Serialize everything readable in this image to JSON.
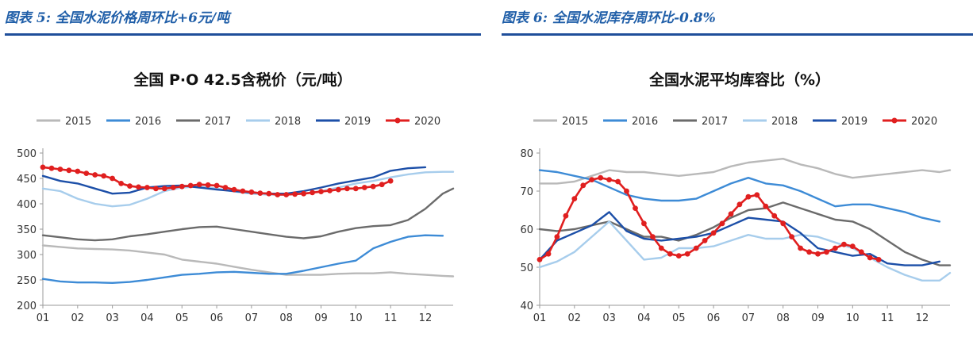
{
  "figures": [
    {
      "caption": "图表 5:  全国水泥价格周环比+6元/吨",
      "chart_data": {
        "type": "line",
        "title": "全国 P·O 42.5含税价（元/吨）",
        "xlabel": "",
        "ylabel": "",
        "x_ticks": [
          "01",
          "02",
          "03",
          "04",
          "05",
          "06",
          "07",
          "08",
          "09",
          "10",
          "11",
          "12"
        ],
        "xlim": [
          1,
          12.8
        ],
        "ylim": [
          200,
          500
        ],
        "y_ticks": [
          200,
          250,
          300,
          350,
          400,
          450,
          500
        ],
        "grid": false,
        "legend": "top",
        "series": [
          {
            "name": "2015",
            "color": "#b9b9b9",
            "marker": false,
            "x": [
              1.0,
              1.5,
              2.0,
              2.5,
              3.0,
              3.5,
              4.0,
              4.5,
              5.0,
              5.5,
              6.0,
              6.5,
              7.0,
              7.5,
              8.0,
              8.5,
              9.0,
              9.5,
              10.0,
              10.5,
              11.0,
              11.5,
              12.0,
              12.5,
              12.8
            ],
            "y": [
              318,
              315,
              312,
              311,
              310,
              308,
              304,
              300,
              290,
              286,
              282,
              276,
              270,
              265,
              260,
              260,
              260,
              262,
              263,
              263,
              265,
              262,
              260,
              258,
              257
            ]
          },
          {
            "name": "2016",
            "color": "#3d8bd6",
            "marker": false,
            "x": [
              1.0,
              1.5,
              2.0,
              2.5,
              3.0,
              3.5,
              4.0,
              4.5,
              5.0,
              5.5,
              6.0,
              6.5,
              7.0,
              7.5,
              8.0,
              8.5,
              9.0,
              9.5,
              10.0,
              10.5,
              11.0,
              11.5,
              12.0,
              12.5
            ],
            "y": [
              252,
              247,
              245,
              245,
              244,
              246,
              250,
              255,
              260,
              262,
              265,
              266,
              264,
              262,
              262,
              268,
              275,
              282,
              288,
              312,
              325,
              335,
              338,
              337
            ]
          },
          {
            "name": "2017",
            "color": "#6b6b6b",
            "marker": false,
            "x": [
              1.0,
              1.5,
              2.0,
              2.5,
              3.0,
              3.5,
              4.0,
              4.5,
              5.0,
              5.5,
              6.0,
              6.5,
              7.0,
              7.5,
              8.0,
              8.5,
              9.0,
              9.5,
              10.0,
              10.5,
              11.0,
              11.5,
              12.0,
              12.5,
              12.8
            ],
            "y": [
              338,
              334,
              330,
              328,
              330,
              336,
              340,
              345,
              350,
              354,
              355,
              350,
              345,
              340,
              335,
              332,
              336,
              345,
              352,
              356,
              358,
              368,
              390,
              420,
              430
            ]
          },
          {
            "name": "2018",
            "color": "#a7cdec",
            "marker": false,
            "x": [
              1.0,
              1.5,
              2.0,
              2.5,
              3.0,
              3.5,
              4.0,
              4.5,
              5.0,
              5.5,
              6.0,
              6.5,
              7.0,
              7.5,
              8.0,
              8.5,
              9.0,
              9.5,
              10.0,
              10.5,
              11.0,
              11.5,
              12.0,
              12.5,
              12.8
            ],
            "y": [
              430,
              425,
              410,
              400,
              395,
              398,
              410,
              425,
              432,
              434,
              430,
              424,
              420,
              418,
              418,
              420,
              425,
              432,
              440,
              445,
              452,
              458,
              462,
              463,
              463
            ]
          },
          {
            "name": "2019",
            "color": "#1c4fa8",
            "marker": false,
            "x": [
              1.0,
              1.5,
              2.0,
              2.5,
              3.0,
              3.5,
              4.0,
              4.5,
              5.0,
              5.5,
              6.0,
              6.5,
              7.0,
              7.5,
              8.0,
              8.5,
              9.0,
              9.5,
              10.0,
              10.5,
              11.0,
              11.5,
              12.0
            ],
            "y": [
              455,
              445,
              440,
              430,
              420,
              422,
              432,
              435,
              436,
              432,
              428,
              425,
              422,
              420,
              420,
              425,
              432,
              440,
              446,
              452,
              465,
              470,
              472
            ]
          },
          {
            "name": "2020",
            "color": "#e01f1f",
            "marker": true,
            "x": [
              1.0,
              1.25,
              1.5,
              1.75,
              2.0,
              2.25,
              2.5,
              2.75,
              3.0,
              3.25,
              3.5,
              3.75,
              4.0,
              4.25,
              4.5,
              4.75,
              5.0,
              5.25,
              5.5,
              5.75,
              6.0,
              6.25,
              6.5,
              6.75,
              7.0,
              7.25,
              7.5,
              7.75,
              8.0,
              8.25,
              8.5,
              8.75,
              9.0,
              9.25,
              9.5,
              9.75,
              10.0,
              10.25,
              10.5,
              10.75,
              11.0
            ],
            "y": [
              472,
              470,
              468,
              466,
              464,
              460,
              457,
              455,
              450,
              440,
              435,
              433,
              432,
              430,
              430,
              432,
              434,
              436,
              438,
              437,
              436,
              432,
              428,
              425,
              423,
              421,
              420,
              418,
              418,
              419,
              420,
              422,
              424,
              426,
              428,
              430,
              430,
              432,
              434,
              438,
              445
            ]
          }
        ]
      }
    },
    {
      "caption": "图表 6:  全国水泥库存周环比-0.8%",
      "chart_data": {
        "type": "line",
        "title": "全国水泥平均库容比（%）",
        "xlabel": "",
        "ylabel": "",
        "x_ticks": [
          "01",
          "02",
          "03",
          "04",
          "05",
          "06",
          "07",
          "08",
          "09",
          "10",
          "11",
          "12"
        ],
        "xlim": [
          1,
          12.8
        ],
        "ylim": [
          40,
          80
        ],
        "y_ticks": [
          40,
          50,
          60,
          70,
          80
        ],
        "grid": false,
        "legend": "top",
        "series": [
          {
            "name": "2015",
            "color": "#b9b9b9",
            "marker": false,
            "x": [
              1.0,
              1.5,
              2.0,
              2.5,
              3.0,
              3.5,
              4.0,
              4.5,
              5.0,
              5.5,
              6.0,
              6.5,
              7.0,
              7.5,
              8.0,
              8.5,
              9.0,
              9.5,
              10.0,
              10.5,
              11.0,
              11.5,
              12.0,
              12.5,
              12.8
            ],
            "y": [
              72,
              72,
              72.5,
              74,
              75.5,
              75,
              75,
              74.5,
              74,
              74.5,
              75,
              76.5,
              77.5,
              78,
              78.5,
              77,
              76,
              74.5,
              73.5,
              74,
              74.5,
              75,
              75.5,
              75,
              75.5
            ]
          },
          {
            "name": "2016",
            "color": "#3d8bd6",
            "marker": false,
            "x": [
              1.0,
              1.5,
              2.0,
              2.5,
              3.0,
              3.5,
              4.0,
              4.5,
              5.0,
              5.5,
              6.0,
              6.5,
              7.0,
              7.5,
              8.0,
              8.5,
              9.0,
              9.5,
              10.0,
              10.5,
              11.0,
              11.5,
              12.0,
              12.5
            ],
            "y": [
              75.5,
              75,
              74,
              73,
              71,
              69,
              68,
              67.5,
              67.5,
              68,
              70,
              72,
              73.5,
              72,
              71.5,
              70,
              68,
              66,
              66.5,
              66.5,
              65.5,
              64.5,
              63,
              62
            ]
          },
          {
            "name": "2017",
            "color": "#6b6b6b",
            "marker": false,
            "x": [
              1.0,
              1.5,
              2.0,
              2.5,
              3.0,
              3.5,
              4.0,
              4.5,
              5.0,
              5.5,
              6.0,
              6.5,
              7.0,
              7.5,
              8.0,
              8.5,
              9.0,
              9.5,
              10.0,
              10.5,
              11.0,
              11.5,
              12.0,
              12.5,
              12.8
            ],
            "y": [
              60,
              59.5,
              60,
              61,
              62,
              60,
              58,
              58,
              57,
              58.5,
              60.5,
              63,
              65,
              65.5,
              67,
              65.5,
              64,
              62.5,
              62,
              60,
              57,
              54,
              52,
              50.5,
              50.5
            ]
          },
          {
            "name": "2018",
            "color": "#a7cdec",
            "marker": false,
            "x": [
              1.0,
              1.5,
              2.0,
              2.5,
              3.0,
              3.5,
              4.0,
              4.5,
              5.0,
              5.5,
              6.0,
              6.5,
              7.0,
              7.5,
              8.0,
              8.5,
              9.0,
              9.5,
              10.0,
              10.5,
              11.0,
              11.5,
              12.0,
              12.5,
              12.8
            ],
            "y": [
              50,
              51.5,
              54,
              58,
              62,
              57,
              52,
              52.5,
              55,
              55,
              55.5,
              57,
              58.5,
              57.5,
              57.5,
              58.5,
              58,
              56.5,
              55,
              52.5,
              50,
              48,
              46.5,
              46.5,
              48.5
            ]
          },
          {
            "name": "2019",
            "color": "#1c4fa8",
            "marker": false,
            "x": [
              1.0,
              1.5,
              2.0,
              2.5,
              3.0,
              3.5,
              4.0,
              4.5,
              5.0,
              5.5,
              6.0,
              6.5,
              7.0,
              7.5,
              8.0,
              8.5,
              9.0,
              9.5,
              10.0,
              10.5,
              11.0,
              11.5,
              12.0,
              12.5
            ],
            "y": [
              52,
              57,
              59,
              61,
              64.5,
              59.5,
              57.5,
              57,
              57.5,
              58,
              59,
              61,
              63,
              62.5,
              62,
              59,
              55,
              54,
              53,
              53.5,
              51,
              50.5,
              50.5,
              51.5
            ]
          },
          {
            "name": "2020",
            "color": "#e01f1f",
            "marker": true,
            "x": [
              1.0,
              1.25,
              1.5,
              1.75,
              2.0,
              2.25,
              2.5,
              2.75,
              3.0,
              3.25,
              3.5,
              3.75,
              4.0,
              4.25,
              4.5,
              4.75,
              5.0,
              5.25,
              5.5,
              5.75,
              6.0,
              6.25,
              6.5,
              6.75,
              7.0,
              7.25,
              7.5,
              7.75,
              8.0,
              8.25,
              8.5,
              8.75,
              9.0,
              9.25,
              9.5,
              9.75,
              10.0,
              10.25,
              10.5,
              10.75
            ],
            "y": [
              52,
              53.5,
              58,
              63.5,
              68,
              71.5,
              73,
              73.5,
              73,
              72.5,
              70,
              65.5,
              61.5,
              58,
              55,
              53.5,
              53,
              53.5,
              55,
              57,
              59,
              61.5,
              64,
              66.5,
              68.5,
              69,
              66,
              63.5,
              61.5,
              58,
              55,
              54,
              53.5,
              54,
              55,
              56,
              55.5,
              54,
              52.5,
              52
            ]
          }
        ]
      }
    }
  ]
}
